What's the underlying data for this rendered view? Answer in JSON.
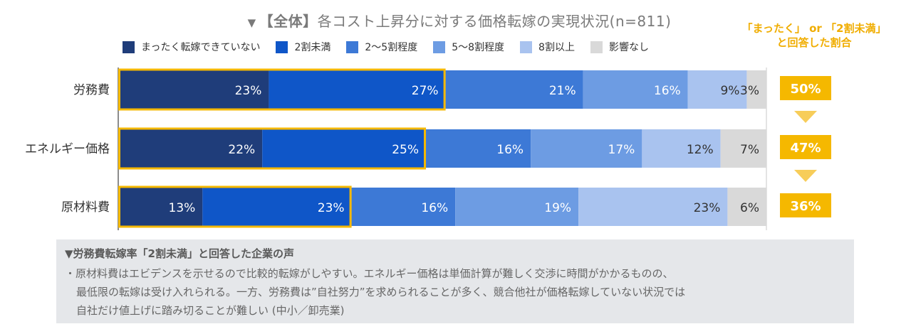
{
  "chart_data": {
    "type": "bar",
    "orientation": "horizontal",
    "stacked": true,
    "title_marker": "▼",
    "title_bold": "【全体】",
    "title_rest": "各コスト上昇分に対する価格転嫁の実現状況(n=811)",
    "categories": [
      "労務費",
      "エネルギー価格",
      "原材料費"
    ],
    "series": [
      {
        "name": "まったく転嫁できていない",
        "color": "#1f3d7a",
        "values": [
          23,
          22,
          13
        ]
      },
      {
        "name": "2割未満",
        "color": "#0f56c8",
        "values": [
          27,
          25,
          23
        ]
      },
      {
        "name": "2～5割程度",
        "color": "#3d79d6",
        "values": [
          21,
          16,
          16
        ]
      },
      {
        "name": "5～8割程度",
        "color": "#6d9ce3",
        "values": [
          16,
          17,
          19
        ]
      },
      {
        "name": "8割以上",
        "color": "#a9c3ef",
        "values": [
          9,
          12,
          23
        ]
      },
      {
        "name": "影響なし",
        "color": "#d9d9d9",
        "values": [
          3,
          7,
          6
        ]
      }
    ],
    "highlight": {
      "title_line1": "「まったく」 or 「2割未満」",
      "title_line2": "と回答した割合",
      "values": [
        "50%",
        "47%",
        "36%"
      ],
      "color": "#f5b800"
    }
  },
  "voice": {
    "title": "▼労務費転嫁率「2割未満」と回答した企業の声",
    "line1": "・原材料費はエビデンスを示せるので比較的転嫁がしやすい。エネルギー価格は単価計算が難しく交渉に時間がかかるものの、",
    "line2": "最低限の転嫁は受け入れられる。一方、労務費は”自社努力”を求められることが多く、競合他社が価格転嫁していない状況では",
    "line3": "自社だけ値上げに踏み切ることが難しい (中小／卸売業)"
  }
}
